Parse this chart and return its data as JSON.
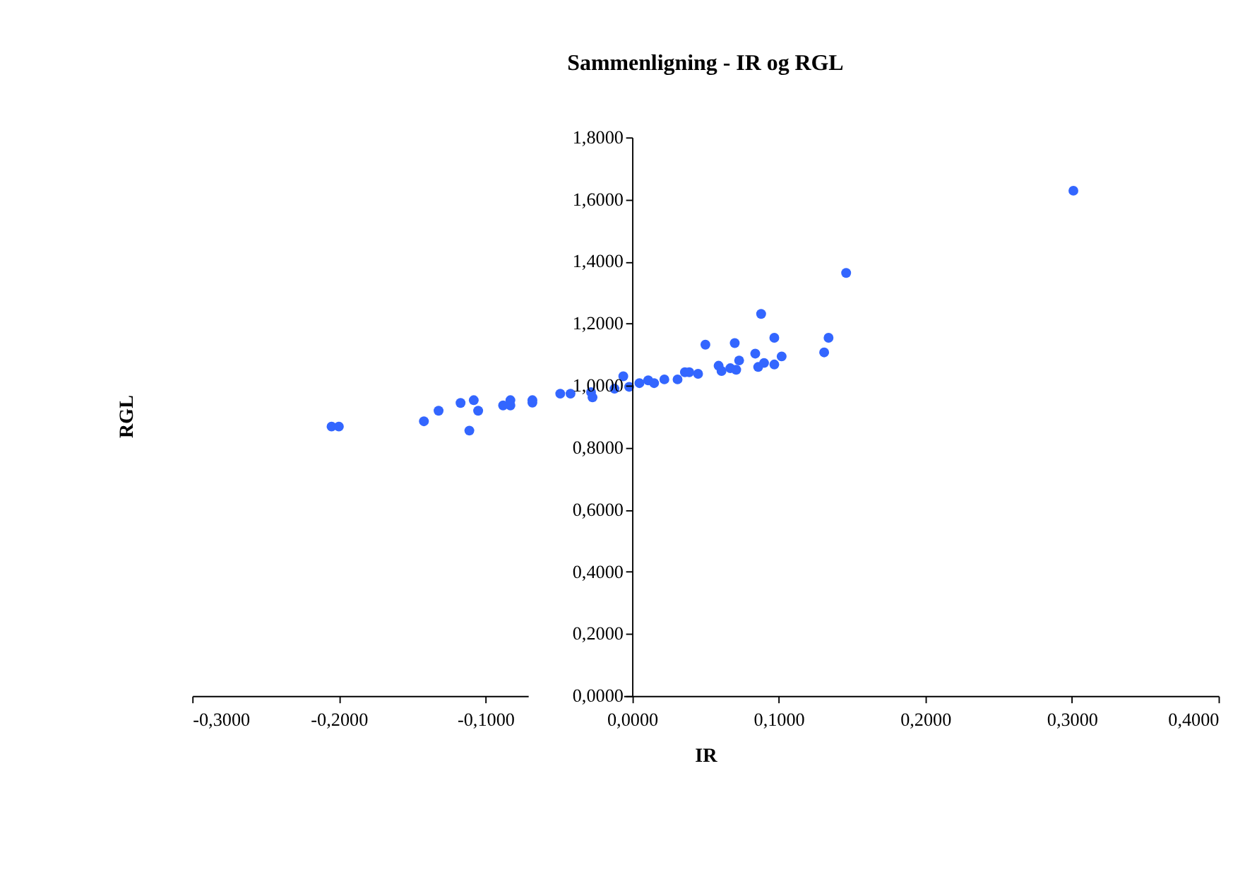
{
  "chart_data": {
    "type": "scatter",
    "title": "Sammenligning - IR og RGL",
    "xlabel": "IR",
    "ylabel": "RGL",
    "x": [
      -0.205,
      -0.2,
      -0.142,
      -0.132,
      -0.117,
      -0.111,
      -0.108,
      -0.105,
      -0.088,
      -0.083,
      -0.083,
      -0.068,
      -0.068,
      -0.049,
      -0.042,
      -0.028,
      -0.027,
      -0.012,
      -0.006,
      -0.002,
      0.005,
      0.011,
      0.015,
      0.022,
      0.031,
      0.036,
      0.039,
      0.045,
      0.05,
      0.059,
      0.061,
      0.067,
      0.07,
      0.071,
      0.073,
      0.084,
      0.086,
      0.088,
      0.09,
      0.097,
      0.097,
      0.102,
      0.131,
      0.134,
      0.146,
      0.301
    ],
    "series": [
      {
        "color": "#3366ff",
        "values": [
          0.868,
          0.868,
          0.885,
          0.919,
          0.944,
          0.855,
          0.953,
          0.919,
          0.936,
          0.953,
          0.936,
          0.953,
          0.945,
          0.974,
          0.974,
          0.979,
          0.962,
          0.99,
          1.03,
          0.996,
          1.008,
          1.017,
          1.008,
          1.02,
          1.02,
          1.043,
          1.043,
          1.038,
          1.132,
          1.064,
          1.047,
          1.056,
          1.137,
          1.051,
          1.081,
          1.103,
          1.06,
          1.231,
          1.073,
          1.154,
          1.068,
          1.094,
          1.107,
          1.154,
          1.363,
          1.628
        ]
      }
    ],
    "xlim": [
      -0.3,
      0.4
    ],
    "xticks": [
      {
        "value": -0.3,
        "label": "-0,3000"
      },
      {
        "value": -0.2,
        "label": "-0,2000"
      },
      {
        "value": -0.1,
        "label": "-0,1000"
      },
      {
        "value": 0,
        "label": "0,0000"
      },
      {
        "value": 0.1,
        "label": "0,1000"
      },
      {
        "value": 0.2,
        "label": "0,2000"
      },
      {
        "value": 0.3,
        "label": "0,3000"
      },
      {
        "value": 0.4,
        "label": "0,4000"
      }
    ],
    "ylim": [
      0,
      1.8
    ],
    "yticks": [
      {
        "value": 0,
        "label": "0,0000"
      },
      {
        "value": 0.2,
        "label": "0,2000"
      },
      {
        "value": 0.4,
        "label": "0,4000"
      },
      {
        "value": 0.6,
        "label": "0,6000"
      },
      {
        "value": 0.8,
        "label": "0,8000"
      },
      {
        "value": 1.0,
        "label": "1,0000"
      },
      {
        "value": 1.2,
        "label": "1,2000"
      },
      {
        "value": 1.4,
        "label": "1,4000"
      },
      {
        "value": 1.6,
        "label": "1,6000"
      },
      {
        "value": 1.8,
        "label": "1,8000"
      }
    ],
    "grid": false
  }
}
